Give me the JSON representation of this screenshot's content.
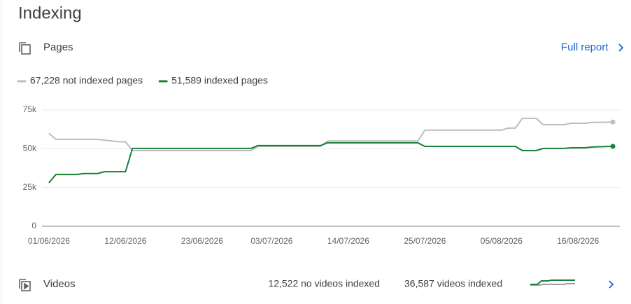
{
  "header": {
    "title": "Indexing"
  },
  "pages": {
    "label": "Pages",
    "link": "Full report"
  },
  "chart_data": {
    "type": "line",
    "series": [
      {
        "name": "67,228 not indexed pages",
        "color": "#bdbdbd",
        "x": [
          "01/06/2026",
          "02/06/2026",
          "08/06/2026",
          "09/06/2026",
          "11/06/2026",
          "12/06/2026",
          "13/06/2026",
          "30/06/2026",
          "01/07/2026",
          "10/07/2026",
          "11/07/2026",
          "24/07/2026",
          "25/07/2026",
          "05/08/2026",
          "06/08/2026",
          "07/08/2026",
          "08/08/2026",
          "10/08/2026",
          "11/08/2026",
          "14/08/2026",
          "15/08/2026",
          "17/08/2026",
          "18/08/2026",
          "21/08/2026"
        ],
        "values": [
          60000,
          56000,
          56000,
          55500,
          54500,
          54500,
          48800,
          48800,
          51500,
          51500,
          55000,
          55000,
          62000,
          62000,
          63300,
          63300,
          69600,
          69600,
          65500,
          65500,
          66400,
          66400,
          67000,
          67228
        ]
      },
      {
        "name": "51,589 indexed pages",
        "color": "#188038",
        "x": [
          "01/06/2026",
          "02/06/2026",
          "05/06/2026",
          "06/06/2026",
          "08/06/2026",
          "09/06/2026",
          "12/06/2026",
          "13/06/2026",
          "30/06/2026",
          "01/07/2026",
          "10/07/2026",
          "11/07/2026",
          "24/07/2026",
          "25/07/2026",
          "07/08/2026",
          "08/08/2026",
          "10/08/2026",
          "11/08/2026",
          "14/08/2026",
          "15/08/2026",
          "17/08/2026",
          "18/08/2026",
          "21/08/2026"
        ],
        "values": [
          28000,
          33400,
          33400,
          34000,
          34000,
          35200,
          35200,
          50200,
          50200,
          52000,
          52000,
          53800,
          53800,
          51500,
          51500,
          48800,
          48800,
          50200,
          50200,
          50600,
          50600,
          51100,
          51589
        ]
      }
    ],
    "xlim": [
      "31/05/2026",
      "22/08/2026"
    ],
    "xticks": [
      "01/06/2026",
      "12/06/2026",
      "23/06/2026",
      "03/07/2026",
      "14/07/2026",
      "25/07/2026",
      "05/08/2026",
      "16/08/2026"
    ],
    "ylim": [
      0,
      75000
    ],
    "yticks": [
      0,
      {
        "value": 25000,
        "label": "25k"
      },
      {
        "value": 50000,
        "label": "50k"
      },
      {
        "value": 75000,
        "label": "75k"
      }
    ],
    "grid": true
  },
  "videos": {
    "label": "Videos",
    "not_indexed": "12,522 no videos indexed",
    "indexed": "36,587 videos indexed"
  }
}
